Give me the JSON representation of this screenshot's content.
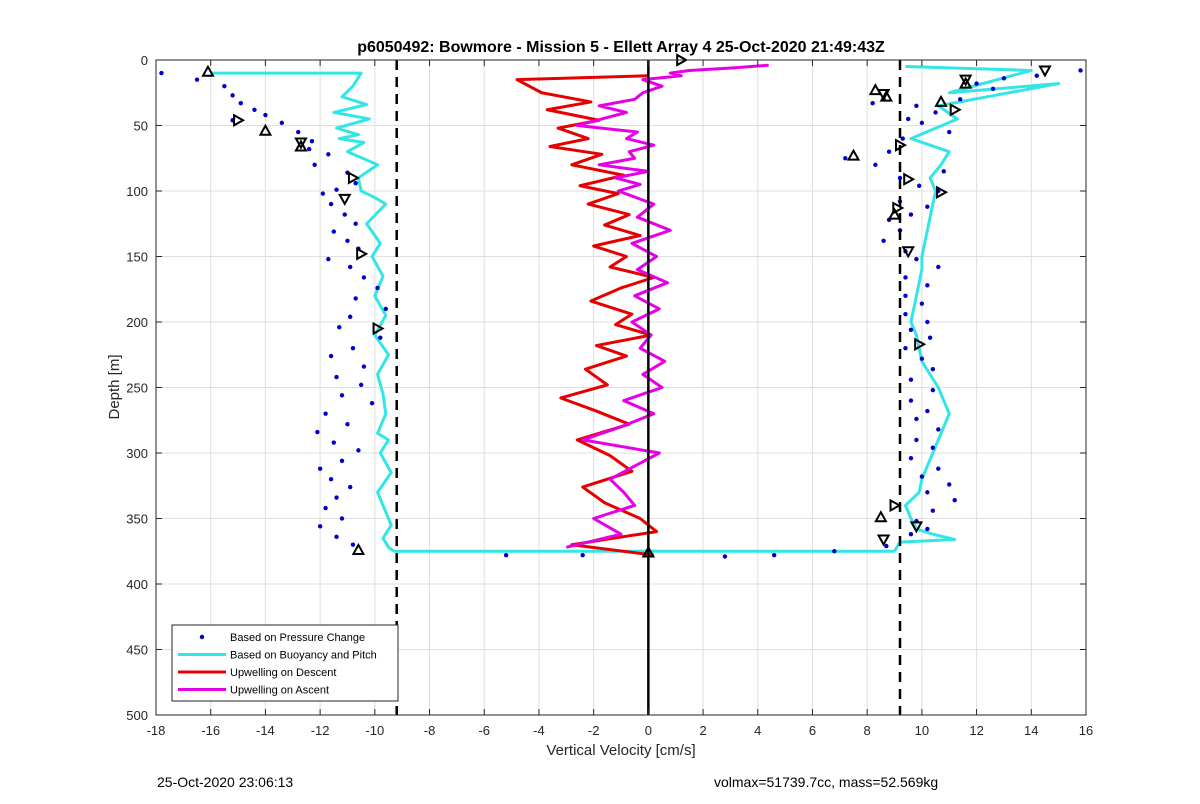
{
  "chart_data": {
    "type": "scatter",
    "title": "p6050492: Bowmore - Mission 5 - Ellett Array 4 25-Oct-2020 21:49:43Z",
    "xlabel": "Vertical Velocity [cm/s]",
    "ylabel": "Depth [m]",
    "xlim": [
      -18,
      16
    ],
    "ylim": [
      0,
      500
    ],
    "y_reversed": true,
    "grid": true,
    "x_ticks": [
      "-18",
      "-16",
      "-14",
      "-12",
      "-10",
      "-8",
      "-6",
      "-4",
      "-2",
      "0",
      "2",
      "4",
      "6",
      "8",
      "10",
      "12",
      "14",
      "16"
    ],
    "y_ticks": [
      "0",
      "50",
      "100",
      "150",
      "200",
      "250",
      "300",
      "350",
      "400",
      "450",
      "500"
    ],
    "legend_position": "bottom-left",
    "legend": [
      {
        "label": "Based on Pressure Change",
        "color": "#0000cc",
        "style": "dot"
      },
      {
        "label": "Based on Buoyancy and Pitch",
        "color": "#33e6e6",
        "style": "line"
      },
      {
        "label": "Upwelling on Descent",
        "color": "#e60000",
        "style": "line"
      },
      {
        "label": "Upwelling on Ascent",
        "color": "#e600e6",
        "style": "line"
      }
    ],
    "reference_lines": {
      "zero": 0,
      "dashed": [
        -9.2,
        9.2
      ]
    },
    "series": [
      {
        "name": "Based on Buoyancy and Pitch",
        "color": "#33e6e6",
        "segments": [
          {
            "x": [
              -16.0,
              -10.5,
              -10.8,
              -11.2,
              -10.3,
              -11.5,
              -10.2,
              -11.4,
              -10.6,
              -11.3,
              -10.4,
              -11.0,
              -9.9,
              -10.6,
              -10.5,
              -10.0,
              -9.6,
              -10.3,
              -9.8,
              -10.1,
              -9.7,
              -10.0,
              -9.6,
              -10.0,
              -9.5,
              -9.9,
              -9.7,
              -9.6,
              -9.9,
              -9.5,
              -9.8,
              -9.4,
              -9.9,
              -9.6,
              -9.4,
              -9.7,
              -9.5,
              -9.3
            ],
            "y": [
              10,
              10,
              20,
              28,
              34,
              40,
              45,
              52,
              57,
              60,
              63,
              70,
              80,
              90,
              100,
              105,
              110,
              125,
              140,
              150,
              165,
              180,
              195,
              210,
              225,
              240,
              255,
              270,
              285,
              290,
              300,
              315,
              330,
              345,
              355,
              365,
              372,
              375
            ]
          },
          {
            "x": [
              -9.3,
              9.0
            ],
            "y": [
              375,
              375
            ]
          },
          {
            "x": [
              9.0,
              9.2,
              11.2,
              10.4,
              9.8,
              9.6,
              9.4,
              9.9,
              10.0,
              10.2,
              10.4,
              10.6,
              10.8,
              11.0,
              10.8,
              10.6,
              10.3,
              10.0,
              9.9,
              9.8,
              9.6,
              9.7,
              9.8,
              9.9,
              10.0,
              10.0,
              10.1,
              10.2,
              10.3,
              10.4,
              10.5,
              10.3,
              10.7,
              11.0,
              9.6,
              11.3,
              10.6,
              15.0,
              11.0,
              14.0,
              9.4
            ],
            "y": [
              375,
              368,
              366,
              362,
              358,
              350,
              340,
              330,
              320,
              310,
              300,
              290,
              280,
              270,
              260,
              250,
              240,
              230,
              220,
              210,
              200,
              190,
              180,
              170,
              160,
              150,
              140,
              130,
              120,
              110,
              100,
              90,
              80,
              70,
              60,
              45,
              35,
              18,
              25,
              8,
              5
            ]
          }
        ]
      },
      {
        "name": "Upwelling on Descent",
        "color": "#e60000",
        "segments": [
          {
            "x": [
              0.0,
              -4.8,
              -3.9,
              -2.1,
              -3.7,
              -1.8,
              -3.3,
              -2.2,
              -3.6,
              -1.7,
              -2.8,
              -0.9,
              -2.5,
              -1.1,
              -2.2,
              -0.7,
              -1.6,
              -0.3,
              -2.0,
              -0.8,
              -1.4,
              0.2,
              -1.0,
              -2.1,
              -0.6,
              -1.2,
              0.1,
              -1.9,
              -0.8,
              -2.3,
              -1.5,
              -3.2,
              -1.9,
              -0.7,
              -2.6,
              -1.4,
              -0.6,
              -2.4,
              -1.6,
              -0.3,
              0.3,
              -2.8,
              0.2
            ],
            "y": [
              12,
              15,
              25,
              32,
              38,
              46,
              52,
              60,
              66,
              72,
              80,
              88,
              96,
              102,
              110,
              118,
              126,
              134,
              142,
              150,
              158,
              166,
              174,
              184,
              194,
              202,
              210,
              218,
              226,
              236,
              248,
              258,
              268,
              278,
              290,
              302,
              314,
              326,
              338,
              350,
              360,
              370,
              378
            ]
          }
        ]
      },
      {
        "name": "Upwelling on Ascent",
        "color": "#e600e6",
        "segments": [
          {
            "x": [
              -3.0,
              -1.0,
              -2.0,
              -0.5,
              -0.9,
              -1.4,
              -0.5,
              0.4,
              -2.4,
              -1.0,
              0.2,
              -0.9,
              0.5,
              -0.2,
              0.6,
              -0.3,
              0.1,
              -0.6,
              0.4,
              -0.5,
              0.7,
              -0.4,
              0.3,
              -0.6,
              0.8,
              -0.4,
              0.2,
              -1.1,
              -0.3,
              -1.2,
              0.0,
              -1.8,
              -0.5,
              -0.7,
              0.2,
              -0.8,
              -0.4,
              -2.6,
              -1.7,
              -0.8,
              -1.8,
              -0.5,
              -0.2,
              0.5,
              -0.2,
              1.2,
              0.8,
              1.5,
              3.1,
              4.4
            ],
            "y": [
              372,
              362,
              350,
              340,
              330,
              320,
              310,
              300,
              290,
              280,
              270,
              260,
              250,
              240,
              230,
              220,
              210,
              200,
              190,
              180,
              170,
              160,
              150,
              140,
              130,
              120,
              110,
              100,
              95,
              90,
              85,
              80,
              75,
              70,
              65,
              60,
              55,
              50,
              45,
              40,
              35,
              30,
              25,
              20,
              15,
              12,
              10,
              8,
              6,
              4
            ]
          }
        ]
      },
      {
        "name": "Based on Pressure Change",
        "color": "#0000cc",
        "points": [
          [
            -17.8,
            10
          ],
          [
            -16.5,
            15
          ],
          [
            -15.5,
            20
          ],
          [
            -15.2,
            27
          ],
          [
            -14.9,
            33
          ],
          [
            -14.4,
            38
          ],
          [
            -14.0,
            42
          ],
          [
            -15.2,
            46
          ],
          [
            -13.4,
            48
          ],
          [
            -12.8,
            55
          ],
          [
            -12.3,
            62
          ],
          [
            -12.4,
            68
          ],
          [
            -11.7,
            72
          ],
          [
            -12.2,
            80
          ],
          [
            -11.0,
            86
          ],
          [
            -10.7,
            94
          ],
          [
            -11.4,
            99
          ],
          [
            -11.9,
            102
          ],
          [
            -11.6,
            110
          ],
          [
            -11.1,
            118
          ],
          [
            -10.7,
            125
          ],
          [
            -11.5,
            131
          ],
          [
            -11.0,
            138
          ],
          [
            -10.6,
            144
          ],
          [
            -11.7,
            152
          ],
          [
            -10.9,
            158
          ],
          [
            -10.4,
            166
          ],
          [
            -9.9,
            174
          ],
          [
            -10.7,
            182
          ],
          [
            -9.6,
            190
          ],
          [
            -10.9,
            196
          ],
          [
            -11.3,
            204
          ],
          [
            -9.8,
            212
          ],
          [
            -10.8,
            220
          ],
          [
            -11.6,
            226
          ],
          [
            -10.4,
            234
          ],
          [
            -11.4,
            242
          ],
          [
            -10.5,
            248
          ],
          [
            -11.2,
            256
          ],
          [
            -10.1,
            262
          ],
          [
            -11.8,
            270
          ],
          [
            -11.0,
            278
          ],
          [
            -12.1,
            284
          ],
          [
            -11.5,
            292
          ],
          [
            -10.6,
            298
          ],
          [
            -11.2,
            306
          ],
          [
            -12.0,
            312
          ],
          [
            -11.6,
            320
          ],
          [
            -10.9,
            326
          ],
          [
            -11.4,
            334
          ],
          [
            -11.8,
            342
          ],
          [
            -11.2,
            350
          ],
          [
            -12.0,
            356
          ],
          [
            -11.4,
            364
          ],
          [
            -10.8,
            370
          ],
          [
            -5.2,
            378
          ],
          [
            -2.4,
            378
          ],
          [
            2.8,
            379
          ],
          [
            4.6,
            378
          ],
          [
            6.8,
            375
          ],
          [
            8.7,
            371
          ],
          [
            8.6,
            30
          ],
          [
            8.2,
            33
          ],
          [
            9.8,
            35
          ],
          [
            10.5,
            40
          ],
          [
            9.5,
            45
          ],
          [
            10.0,
            48
          ],
          [
            11.0,
            55
          ],
          [
            9.3,
            60
          ],
          [
            8.8,
            70
          ],
          [
            7.2,
            75
          ],
          [
            8.3,
            80
          ],
          [
            10.8,
            85
          ],
          [
            9.2,
            90
          ],
          [
            9.9,
            96
          ],
          [
            10.6,
            100
          ],
          [
            9.2,
            108
          ],
          [
            10.2,
            112
          ],
          [
            9.6,
            118
          ],
          [
            8.8,
            122
          ],
          [
            9.2,
            130
          ],
          [
            8.6,
            138
          ],
          [
            9.4,
            146
          ],
          [
            9.8,
            152
          ],
          [
            10.6,
            158
          ],
          [
            9.4,
            166
          ],
          [
            10.2,
            172
          ],
          [
            9.4,
            180
          ],
          [
            10.0,
            186
          ],
          [
            9.4,
            194
          ],
          [
            10.2,
            200
          ],
          [
            9.6,
            206
          ],
          [
            10.3,
            212
          ],
          [
            9.4,
            220
          ],
          [
            10.0,
            228
          ],
          [
            10.4,
            236
          ],
          [
            9.6,
            244
          ],
          [
            10.4,
            252
          ],
          [
            9.6,
            260
          ],
          [
            10.2,
            268
          ],
          [
            9.8,
            274
          ],
          [
            10.6,
            282
          ],
          [
            9.8,
            290
          ],
          [
            10.4,
            296
          ],
          [
            9.6,
            304
          ],
          [
            10.6,
            312
          ],
          [
            10.0,
            318
          ],
          [
            11.0,
            324
          ],
          [
            10.2,
            330
          ],
          [
            11.2,
            336
          ],
          [
            10.4,
            344
          ],
          [
            9.8,
            352
          ],
          [
            10.2,
            358
          ],
          [
            9.6,
            362
          ],
          [
            15.8,
            8
          ],
          [
            14.2,
            12
          ],
          [
            13.0,
            14
          ],
          [
            12.6,
            22
          ],
          [
            12.0,
            18
          ],
          [
            11.4,
            30
          ]
        ]
      },
      {
        "name": "Markers",
        "color": "#000000",
        "triangles": [
          [
            -16.1,
            9,
            "up"
          ],
          [
            -15.0,
            46,
            "right"
          ],
          [
            -14.0,
            54,
            "up"
          ],
          [
            -12.7,
            63,
            "down"
          ],
          [
            -12.7,
            66,
            "up"
          ],
          [
            -10.8,
            90,
            "right"
          ],
          [
            -11.1,
            106,
            "down"
          ],
          [
            -10.5,
            148,
            "right"
          ],
          [
            -9.9,
            205,
            "right"
          ],
          [
            -10.6,
            374,
            "up"
          ],
          [
            1.2,
            0,
            "right"
          ],
          [
            0.0,
            376,
            "up"
          ],
          [
            14.5,
            8,
            "down"
          ],
          [
            11.6,
            15,
            "down"
          ],
          [
            11.6,
            18,
            "up"
          ],
          [
            10.7,
            32,
            "up"
          ],
          [
            11.2,
            38,
            "right"
          ],
          [
            8.3,
            23,
            "up"
          ],
          [
            8.6,
            26,
            "down"
          ],
          [
            8.7,
            28,
            "up"
          ],
          [
            9.2,
            65,
            "right"
          ],
          [
            7.5,
            73,
            "up"
          ],
          [
            9.5,
            91,
            "right"
          ],
          [
            10.7,
            101,
            "right"
          ],
          [
            9.1,
            113,
            "right"
          ],
          [
            9.0,
            118,
            "up"
          ],
          [
            9.5,
            146,
            "down"
          ],
          [
            9.9,
            217,
            "right"
          ],
          [
            9.0,
            340,
            "right"
          ],
          [
            8.5,
            349,
            "up"
          ],
          [
            9.8,
            356,
            "down"
          ],
          [
            8.6,
            366,
            "down"
          ]
        ]
      }
    ]
  },
  "footer": {
    "timestamp": "25-Oct-2020 23:06:13",
    "vol_mass": "volmax=51739.7cc, mass=52.569kg"
  }
}
